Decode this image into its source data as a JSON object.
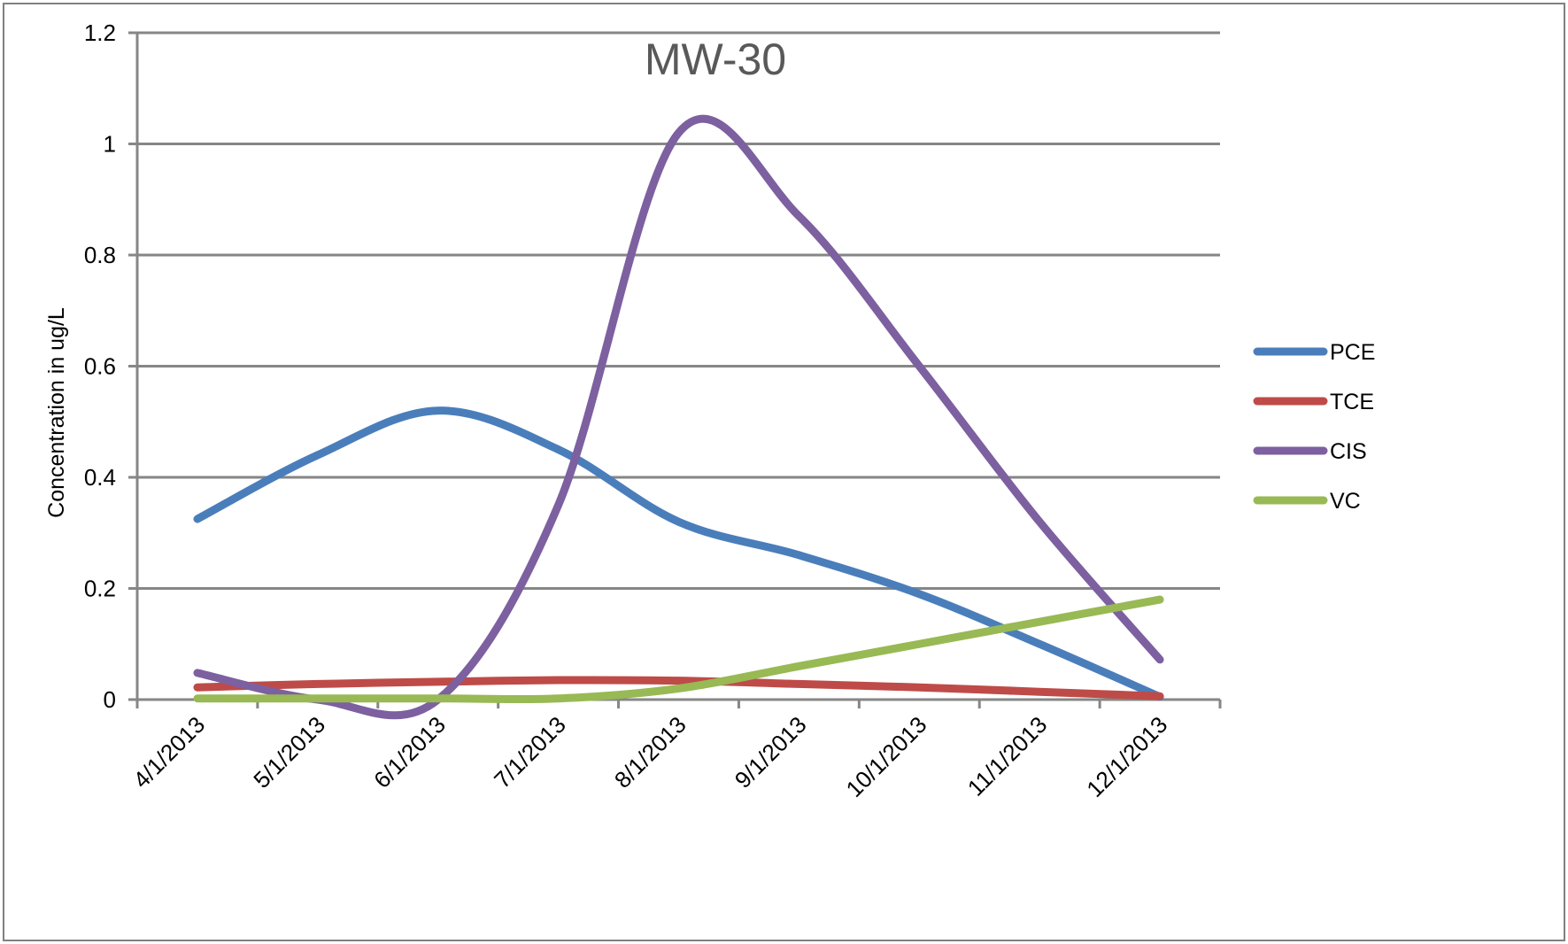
{
  "chart_data": {
    "type": "line",
    "title": "MW-30",
    "xlabel": "",
    "ylabel": "Concentration in ug/L",
    "categories": [
      "4/1/2013",
      "5/1/2013",
      "6/1/2013",
      "7/1/2013",
      "8/1/2013",
      "9/1/2013",
      "10/1/2013",
      "11/1/2013",
      "12/1/2013"
    ],
    "ylim": [
      0,
      1.2
    ],
    "yticks": [
      "0",
      "0.2",
      "0.4",
      "0.6",
      "0.8",
      "1",
      "1.2"
    ],
    "grid": true,
    "legend_position": "right",
    "smoothed": true,
    "series": [
      {
        "name": "PCE",
        "color": "#4a7ebb",
        "values": [
          0.325,
          0.44,
          0.52,
          0.45,
          0.32,
          0.26,
          0.19,
          0.1,
          0.005
        ]
      },
      {
        "name": "TCE",
        "color": "#be4b48",
        "values": [
          0.022,
          0.028,
          0.032,
          0.035,
          0.034,
          0.028,
          0.022,
          0.014,
          0.006
        ]
      },
      {
        "name": "CIS",
        "color": "#7d60a0",
        "values": [
          0.048,
          0.0,
          0.0,
          0.35,
          1.02,
          0.87,
          0.6,
          0.32,
          0.072
        ]
      },
      {
        "name": "VC",
        "color": "#98b954",
        "values": [
          0.002,
          0.002,
          0.002,
          0.002,
          0.02,
          0.06,
          0.1,
          0.14,
          0.18
        ]
      }
    ]
  }
}
